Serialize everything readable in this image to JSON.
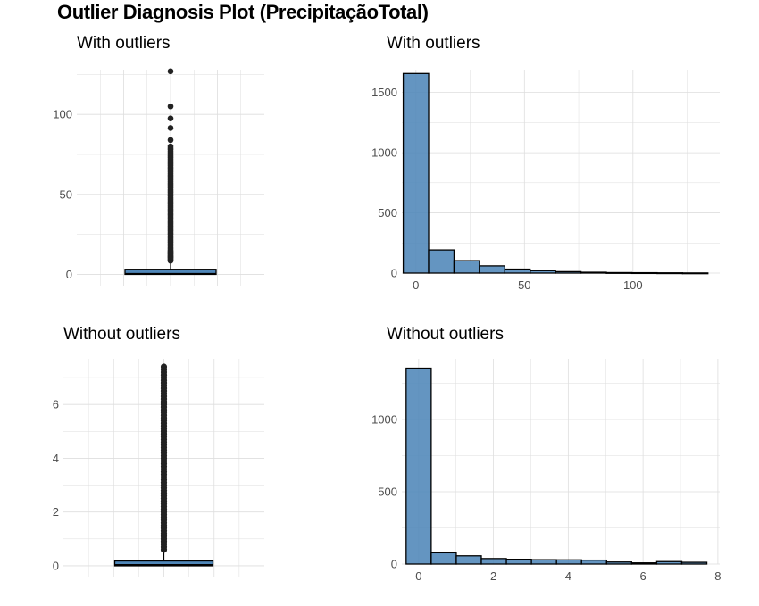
{
  "title": "Outlier Diagnosis Plot (PrecipitaçãoTotal)",
  "colors": {
    "fill": "#4f86b8",
    "outline": "#000000",
    "grid": "#dedede",
    "tick_text": "#4d4d4d"
  },
  "chart_data": [
    {
      "type": "boxplot",
      "title": "With outliers",
      "y_ticks": [
        0,
        50,
        100
      ],
      "ylim": [
        -7,
        128
      ],
      "box": {
        "lower_whisker": 0,
        "q1": 0,
        "median": 0.3,
        "q3": 3.2,
        "upper_whisker": 8
      },
      "outliers": [
        8.5,
        9,
        9.5,
        10,
        10.5,
        11,
        11.5,
        12,
        12.5,
        13,
        13.5,
        14,
        14.5,
        15,
        16,
        17,
        18,
        19,
        20,
        21,
        22,
        23,
        24,
        25,
        26,
        27,
        28,
        29,
        30,
        31,
        32,
        33,
        34,
        35,
        36,
        37,
        38,
        39,
        40,
        41,
        42,
        43,
        44,
        45,
        46,
        47,
        48,
        49,
        50,
        51,
        52,
        53,
        54,
        55,
        56,
        57,
        58,
        59,
        60,
        61,
        62,
        63,
        64,
        65,
        66,
        67,
        68,
        69,
        70,
        71,
        72,
        73,
        74,
        75,
        76,
        77,
        78,
        79,
        80,
        84,
        91.5,
        97.5,
        105,
        127
      ]
    },
    {
      "type": "histogram",
      "title": "With outliers",
      "x_ticks": [
        0,
        50,
        100
      ],
      "y_ticks": [
        0,
        500,
        1000,
        1500
      ],
      "xlim": [
        -6.5,
        140
      ],
      "ylim": [
        0,
        1690
      ],
      "bin_width": 11.7,
      "bins": [
        {
          "x0": -5.85,
          "x1": 5.85,
          "count": 1658
        },
        {
          "x0": 5.85,
          "x1": 17.55,
          "count": 192
        },
        {
          "x0": 17.55,
          "x1": 29.25,
          "count": 103
        },
        {
          "x0": 29.25,
          "x1": 40.95,
          "count": 60
        },
        {
          "x0": 40.95,
          "x1": 52.65,
          "count": 33
        },
        {
          "x0": 52.65,
          "x1": 64.35,
          "count": 20
        },
        {
          "x0": 64.35,
          "x1": 76.05,
          "count": 12
        },
        {
          "x0": 76.05,
          "x1": 87.75,
          "count": 7
        },
        {
          "x0": 87.75,
          "x1": 99.45,
          "count": 4
        },
        {
          "x0": 99.45,
          "x1": 111.15,
          "count": 3
        },
        {
          "x0": 111.15,
          "x1": 122.85,
          "count": 2
        },
        {
          "x0": 122.85,
          "x1": 134.55,
          "count": 1
        }
      ]
    },
    {
      "type": "boxplot",
      "title": "Without outliers",
      "y_ticks": [
        0,
        2,
        4,
        6
      ],
      "ylim": [
        -0.4,
        7.7
      ],
      "box": {
        "lower_whisker": 0,
        "q1": 0,
        "median": 0.03,
        "q3": 0.18,
        "upper_whisker": 0.5
      },
      "outliers": [
        0.6,
        0.7,
        0.8,
        0.9,
        1.0,
        1.1,
        1.2,
        1.3,
        1.4,
        1.5,
        1.6,
        1.7,
        1.8,
        1.9,
        2.0,
        2.1,
        2.2,
        2.3,
        2.4,
        2.5,
        2.6,
        2.7,
        2.8,
        2.9,
        3.0,
        3.1,
        3.2,
        3.3,
        3.4,
        3.5,
        3.6,
        3.7,
        3.8,
        3.9,
        4.0,
        4.1,
        4.2,
        4.3,
        4.4,
        4.5,
        4.6,
        4.7,
        4.8,
        4.9,
        5.0,
        5.1,
        5.2,
        5.3,
        5.4,
        5.5,
        5.6,
        5.7,
        5.8,
        5.9,
        6.0,
        6.1,
        6.2,
        6.3,
        6.4,
        6.5,
        6.6,
        6.7,
        6.8,
        6.9,
        7.0,
        7.1,
        7.2,
        7.3,
        7.4
      ]
    },
    {
      "type": "histogram",
      "title": "Without outliers",
      "x_ticks": [
        0,
        2,
        4,
        6,
        8
      ],
      "y_ticks": [
        0,
        500,
        1000
      ],
      "xlim": [
        -0.45,
        8.05
      ],
      "ylim": [
        0,
        1420
      ],
      "bin_width": 0.67,
      "bins": [
        {
          "x0": -0.335,
          "x1": 0.335,
          "count": 1355
        },
        {
          "x0": 0.335,
          "x1": 1.005,
          "count": 78
        },
        {
          "x0": 1.005,
          "x1": 1.675,
          "count": 57
        },
        {
          "x0": 1.675,
          "x1": 2.345,
          "count": 38
        },
        {
          "x0": 2.345,
          "x1": 3.015,
          "count": 33
        },
        {
          "x0": 3.015,
          "x1": 3.685,
          "count": 30
        },
        {
          "x0": 3.685,
          "x1": 4.355,
          "count": 29
        },
        {
          "x0": 4.355,
          "x1": 5.025,
          "count": 27
        },
        {
          "x0": 5.025,
          "x1": 5.695,
          "count": 14
        },
        {
          "x0": 5.695,
          "x1": 6.365,
          "count": 8
        },
        {
          "x0": 6.365,
          "x1": 7.035,
          "count": 17
        },
        {
          "x0": 7.035,
          "x1": 7.705,
          "count": 12
        }
      ]
    }
  ]
}
